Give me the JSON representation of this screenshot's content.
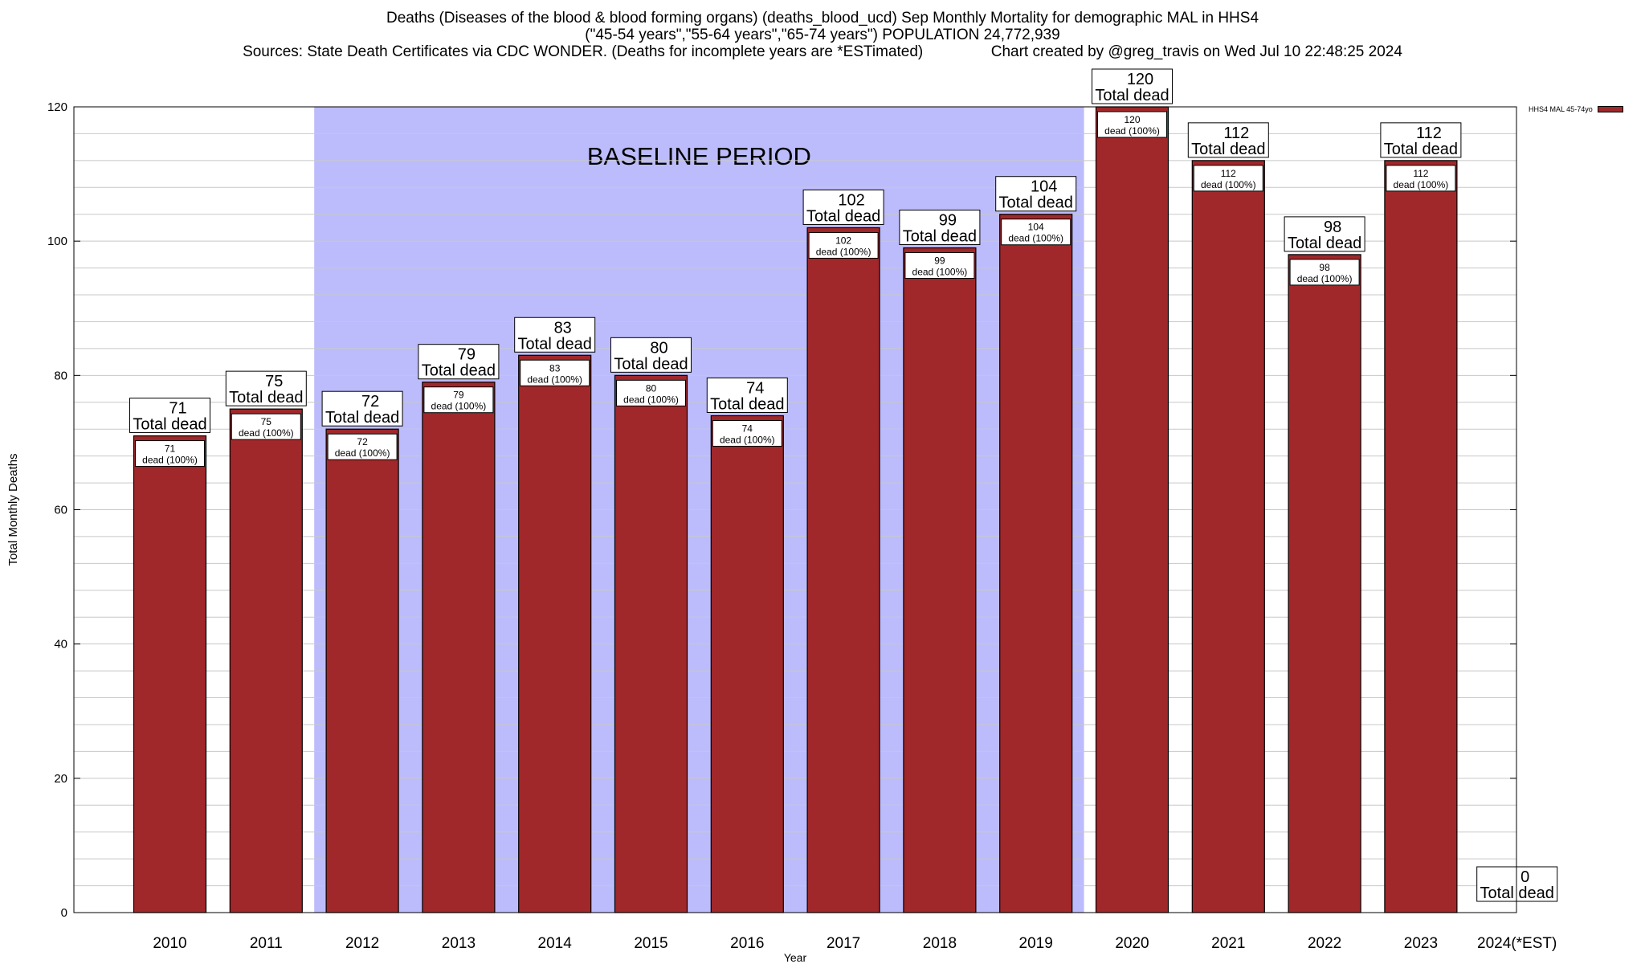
{
  "title": {
    "line1": "Deaths (Diseases of the blood & blood forming organs) (deaths_blood_ucd) Sep Monthly Mortality for demographic MAL in HHS4",
    "line2": "(\"45-54 years\",\"55-64 years\",\"65-74 years\") POPULATION 24,772,939",
    "line3": "Sources: State Death Certificates via CDC WONDER. (Deaths for incomplete years are *ESTimated)                Chart created by @greg_travis on Wed Jul 10 22:48:25 2024"
  },
  "legend": {
    "label": "HHS4 MAL 45-74yo",
    "color": "#a0282a"
  },
  "colors": {
    "bar": "#a0282a",
    "baseline": "#bcbcfc",
    "grid": "#c8c8c8"
  },
  "chart_data": {
    "type": "bar",
    "xlabel": "Year",
    "ylabel": "Total Monthly Deaths",
    "ylim": [
      0,
      120
    ],
    "yticks": [
      0,
      20,
      40,
      60,
      80,
      100,
      120
    ],
    "grid": true,
    "legend_position": "top-right",
    "categories": [
      "2010",
      "2011",
      "2012",
      "2013",
      "2014",
      "2015",
      "2016",
      "2017",
      "2018",
      "2019",
      "2020",
      "2021",
      "2022",
      "2023",
      "2024(*EST)"
    ],
    "series": [
      {
        "name": "HHS4 MAL 45-74yo",
        "values": [
          71,
          75,
          72,
          79,
          83,
          80,
          74,
          102,
          99,
          104,
          120,
          112,
          98,
          112,
          0
        ]
      }
    ],
    "top_label_suffix": "Total dead",
    "inner_label_suffix": "dead (100%)",
    "annotation": {
      "text": "BASELINE PERIOD",
      "from": "2012",
      "to": "2019"
    }
  }
}
